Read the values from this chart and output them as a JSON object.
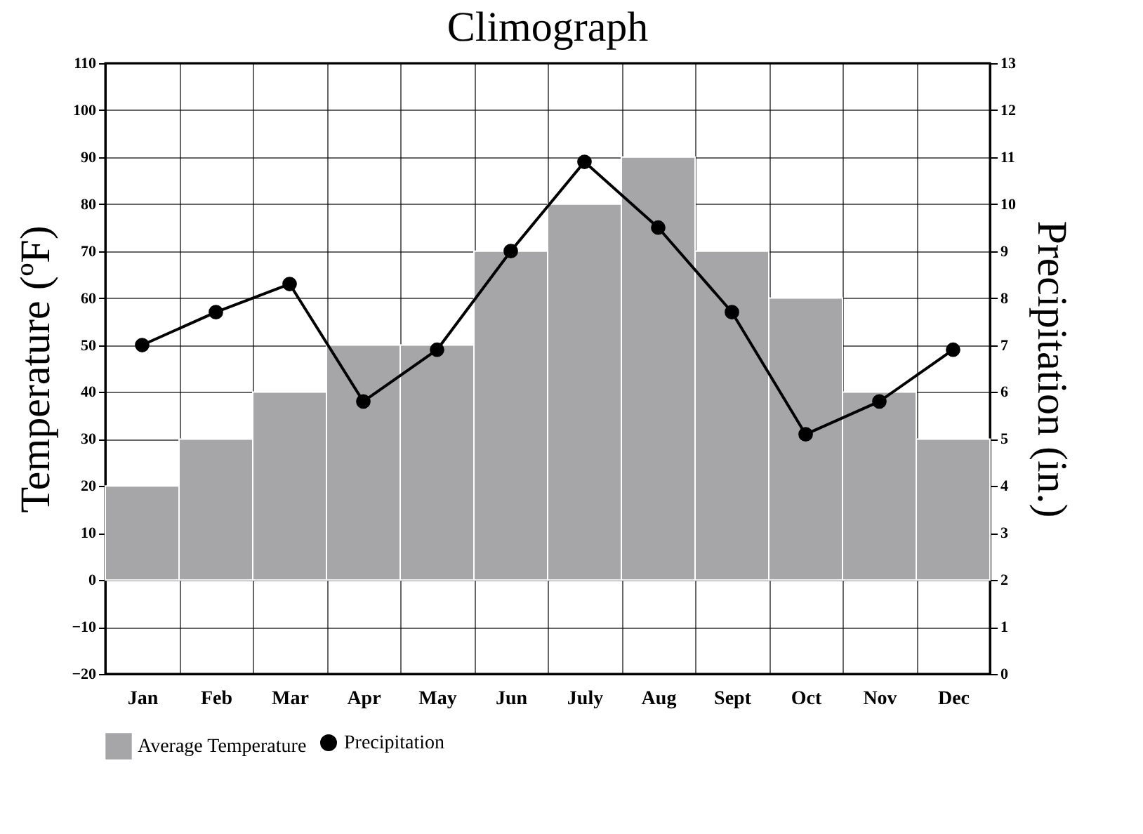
{
  "chart_data": {
    "type": "bar",
    "title": "Climograph",
    "ylabel": "Temperature (ºF)",
    "y2label": "Precipitation (in.)",
    "categories": [
      "Jan",
      "Feb",
      "Mar",
      "Apr",
      "May",
      "Jun",
      "July",
      "Aug",
      "Sept",
      "Oct",
      "Nov",
      "Dec"
    ],
    "series": [
      {
        "name": "Average Temperature",
        "color": "#a6a6a8",
        "values": [
          20,
          30,
          40,
          50,
          50,
          70,
          80,
          90,
          70,
          60,
          40,
          30
        ]
      },
      {
        "name": "Precipitation",
        "type": "line",
        "axis": "y2",
        "color": "#000000",
        "values": [
          7.0,
          7.7,
          8.3,
          5.8,
          6.9,
          9.0,
          10.9,
          9.5,
          7.7,
          5.1,
          5.8,
          6.9
        ]
      }
    ],
    "ylim": [
      -20,
      110
    ],
    "yticks": [
      -20,
      -10,
      0,
      10,
      20,
      30,
      40,
      50,
      60,
      70,
      80,
      90,
      100,
      110
    ],
    "y2lim": [
      0,
      13
    ],
    "y2ticks": [
      0,
      1,
      2,
      3,
      4,
      5,
      6,
      7,
      8,
      9,
      10,
      11,
      12,
      13
    ],
    "grid": true,
    "legend": "bottom",
    "marker": "circle",
    "line_style": "solid"
  }
}
